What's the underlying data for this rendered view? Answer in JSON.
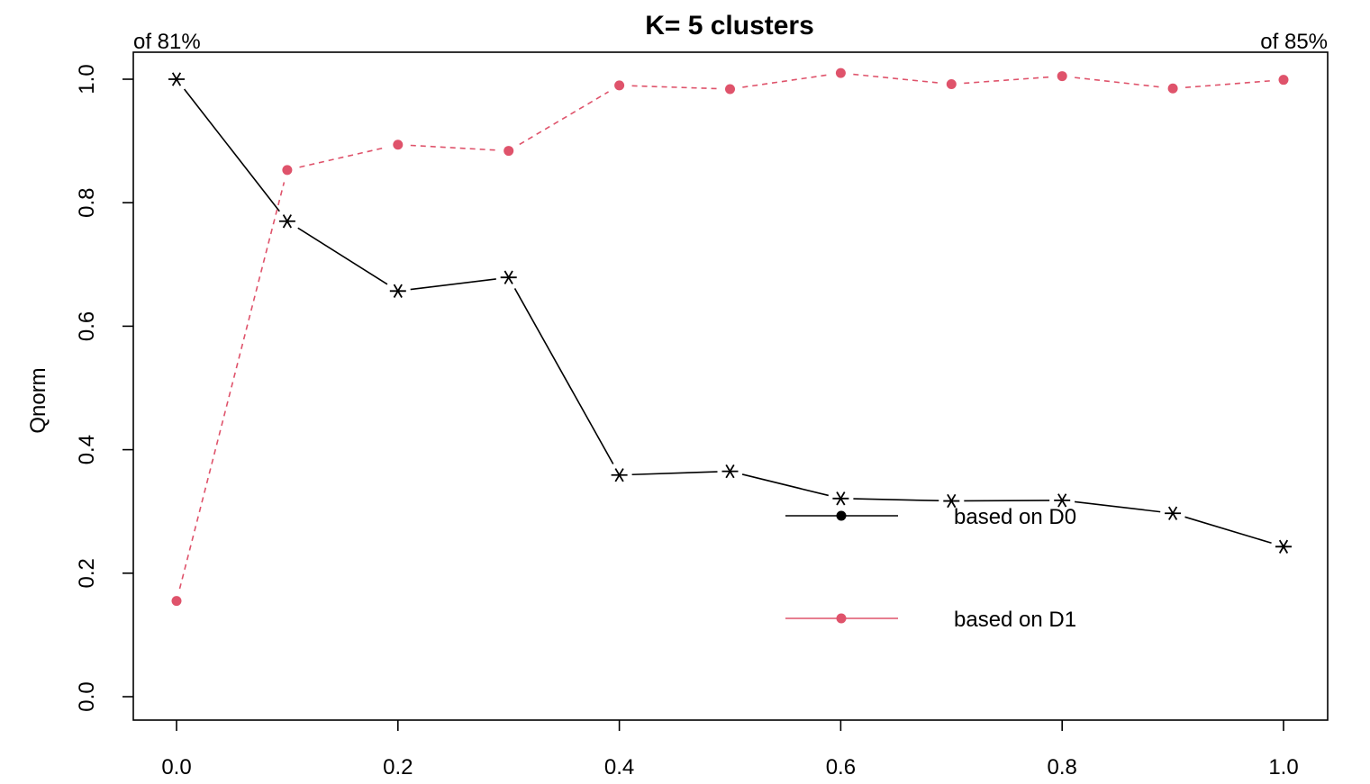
{
  "colors": {
    "d0": "#000000",
    "d1": "#DF536B"
  },
  "annotations": {
    "left": "of 81%",
    "right": "of 85%"
  },
  "chart_data": {
    "type": "line",
    "title": "K= 5 clusters",
    "xlabel": "",
    "ylabel": "Qnorm",
    "xlim": [
      0,
      1
    ],
    "ylim": [
      0,
      1
    ],
    "grid": false,
    "legend_position": "center-right",
    "x": [
      0.0,
      0.1,
      0.2,
      0.3,
      0.4,
      0.5,
      0.6,
      0.7,
      0.8,
      0.9,
      1.0
    ],
    "x_ticks": [
      "0.0",
      "0.2",
      "0.4",
      "0.6",
      "0.8",
      "1.0"
    ],
    "y_ticks": [
      "0.0",
      "0.2",
      "0.4",
      "0.6",
      "0.8",
      "1.0"
    ],
    "series": [
      {
        "name": "based on D0",
        "marker": "asterisk",
        "line": "solid",
        "values": [
          1.0,
          0.77,
          0.657,
          0.679,
          0.359,
          0.365,
          0.321,
          0.317,
          0.318,
          0.297,
          0.243
        ]
      },
      {
        "name": "based on D1",
        "marker": "dot",
        "line": "dashed",
        "values": [
          0.155,
          0.853,
          0.894,
          0.884,
          0.99,
          0.984,
          1.01,
          0.992,
          1.005,
          0.985,
          0.999
        ]
      }
    ]
  }
}
